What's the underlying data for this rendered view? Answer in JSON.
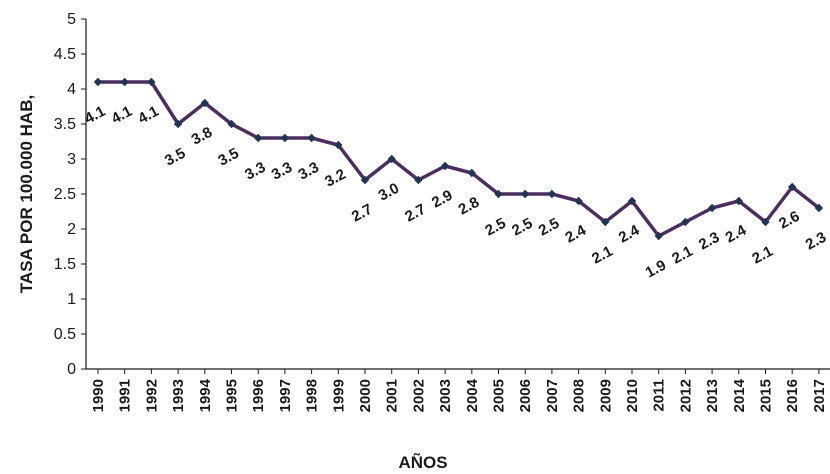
{
  "colors": {
    "line": "#4b2d5e",
    "marker": "#1f3552",
    "axis": "#1a1a1a"
  },
  "chart_data": {
    "type": "line",
    "title": "",
    "xlabel": "AÑOS",
    "ylabel": "TASA POR 100.000 HAB,",
    "ylim": [
      0,
      5
    ],
    "yticks": [
      "0",
      "0.5",
      "1",
      "1.5",
      "2",
      "2.5",
      "3",
      "3.5",
      "4",
      "4.5",
      "5"
    ],
    "grid": false,
    "legend": "none",
    "categories": [
      "1990",
      "1991",
      "1992",
      "1993",
      "1994",
      "1995",
      "1996",
      "1997",
      "1998",
      "1999",
      "2000",
      "2001",
      "2002",
      "2003",
      "2004",
      "2005",
      "2006",
      "2007",
      "2008",
      "2009",
      "2010",
      "2011",
      "2012",
      "2013",
      "2014",
      "2015",
      "2016",
      "2017"
    ],
    "series": [
      {
        "values": [
          4.1,
          4.1,
          4.1,
          3.5,
          3.8,
          3.5,
          3.3,
          3.3,
          3.3,
          3.2,
          2.7,
          3.0,
          2.7,
          2.9,
          2.8,
          2.5,
          2.5,
          2.5,
          2.4,
          2.1,
          2.4,
          1.9,
          2.1,
          2.3,
          2.4,
          2.1,
          2.6,
          2.3
        ],
        "data_labels": [
          "4.1",
          "4.1",
          "4.1",
          "3.5",
          "3.8",
          "3.5",
          "3.3",
          "3.3",
          "3.3",
          "3.2",
          "2.7",
          "3.0",
          "2.7",
          "2.9",
          "2.8",
          "2.5",
          "2.5",
          "2.5",
          "2.4",
          "2.1",
          "2.4",
          "1.9",
          "2.1",
          "2.3",
          "2.4",
          "2.1",
          "2.6",
          "2.3"
        ]
      }
    ]
  }
}
